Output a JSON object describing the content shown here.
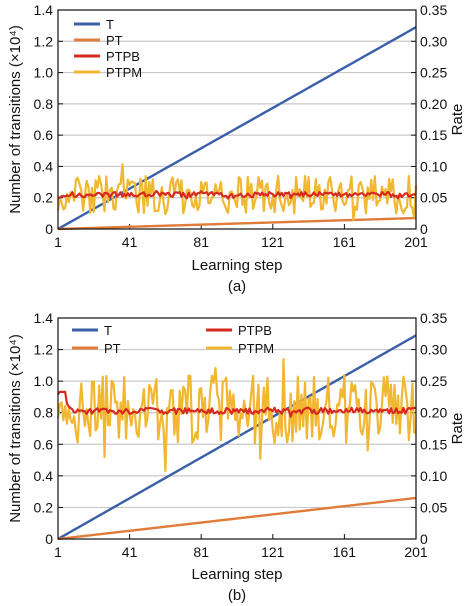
{
  "panels": [
    {
      "caption": "(a)",
      "chart_data": {
        "type": "line",
        "xlabel": "Learning step",
        "ylabel": "Number of transitions (×10⁴)",
        "y2label": "Rate",
        "xlim": [
          1,
          201
        ],
        "ylim": [
          0,
          1.4
        ],
        "y2lim": [
          0,
          0.35
        ],
        "xticks": [
          "1",
          "41",
          "81",
          "121",
          "161",
          "201"
        ],
        "yticks": [
          "0",
          "0.2",
          "0.4",
          "0.6",
          "0.8",
          "1.0",
          "1.2",
          "1.4"
        ],
        "y2ticks": [
          "0",
          "0.05",
          "0.10",
          "0.15",
          "0.20",
          "0.25",
          "0.30",
          "0.35"
        ],
        "grid": "horizontal",
        "legend_position": "top-left",
        "legend_layout": "column",
        "series": [
          {
            "name": "T",
            "axis": "left",
            "color": "#3a5fa8",
            "type": "linear",
            "start": 0.0,
            "end": 1.29
          },
          {
            "name": "PT",
            "axis": "left",
            "color": "#e07b39",
            "type": "linear",
            "start": 0.0,
            "end": 0.07
          },
          {
            "name": "PTPB",
            "axis": "right",
            "color": "#d62a1e",
            "baseline": 0.055,
            "amplitude": 0.004,
            "start_value": 0.05
          },
          {
            "name": "PTPM",
            "axis": "right",
            "color": "#f2b731",
            "baseline": 0.055,
            "amplitude": 0.03,
            "start_value": 0.035
          }
        ]
      }
    },
    {
      "caption": "(b)",
      "chart_data": {
        "type": "line",
        "xlabel": "Learning step",
        "ylabel": "Number of transitions (×10⁴)",
        "y2label": "Rate",
        "xlim": [
          1,
          201
        ],
        "ylim": [
          0,
          1.4
        ],
        "y2lim": [
          0,
          0.35
        ],
        "xticks": [
          "1",
          "41",
          "81",
          "121",
          "161",
          "201"
        ],
        "yticks": [
          "0",
          "0.2",
          "0.4",
          "0.6",
          "0.8",
          "1.0",
          "1.2",
          "1.4"
        ],
        "y2ticks": [
          "0",
          "0.05",
          "0.10",
          "0.15",
          "0.20",
          "0.25",
          "0.30",
          "0.35"
        ],
        "grid": "horizontal",
        "legend_position": "top-left",
        "legend_layout": "grid",
        "series": [
          {
            "name": "T",
            "axis": "left",
            "color": "#3a5fa8",
            "type": "linear",
            "start": 0.0,
            "end": 1.29
          },
          {
            "name": "PT",
            "axis": "left",
            "color": "#e07b39",
            "type": "linear",
            "start": 0.0,
            "end": 0.26
          },
          {
            "name": "PTPB",
            "axis": "right",
            "color": "#d62a1e",
            "baseline": 0.203,
            "amplitude": 0.005,
            "start_value": 0.23
          },
          {
            "name": "PTPM",
            "axis": "right",
            "color": "#f2b731",
            "baseline": 0.205,
            "amplitude": 0.055,
            "start_value": 0.2
          }
        ]
      }
    }
  ]
}
